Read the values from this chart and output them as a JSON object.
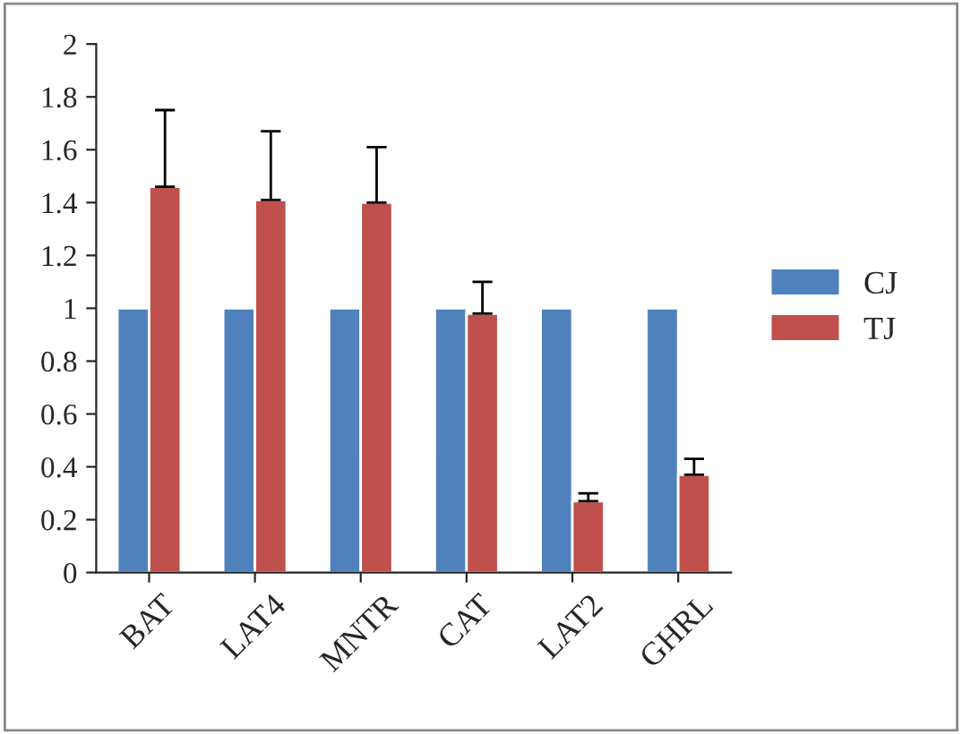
{
  "chart_data": {
    "type": "bar",
    "categories": [
      "BAT",
      "LAT4",
      "MNTR",
      "CAT",
      "LAT2",
      "GHRL"
    ],
    "series": [
      {
        "name": "CJ",
        "color": "#4f81bd",
        "values": [
          1,
          1,
          1,
          1,
          1,
          1
        ]
      },
      {
        "name": "TJ",
        "color": "#c0504d",
        "values": [
          1.46,
          1.41,
          1.4,
          0.98,
          0.27,
          0.37
        ],
        "errors": [
          [
            1.46,
            1.75
          ],
          [
            1.41,
            1.67
          ],
          [
            1.4,
            1.61
          ],
          [
            0.98,
            1.1
          ],
          [
            0.27,
            0.3
          ],
          [
            0.37,
            0.43
          ]
        ]
      }
    ],
    "ylim": [
      0,
      2
    ],
    "yticks": [
      0,
      {
        "value": 0.2,
        "label": "0.2"
      },
      {
        "value": 0.4,
        "label": "0.4"
      },
      {
        "value": 0.6,
        "label": "0.6"
      },
      {
        "value": 0.8,
        "label": "0.8"
      },
      1,
      {
        "value": 1.2,
        "label": "1.2"
      },
      {
        "value": 1.4,
        "label": "1.4"
      },
      {
        "value": 1.6,
        "label": "1.6"
      },
      {
        "value": 1.8,
        "label": "1.8"
      },
      2
    ],
    "grid": false,
    "legend": "right"
  }
}
